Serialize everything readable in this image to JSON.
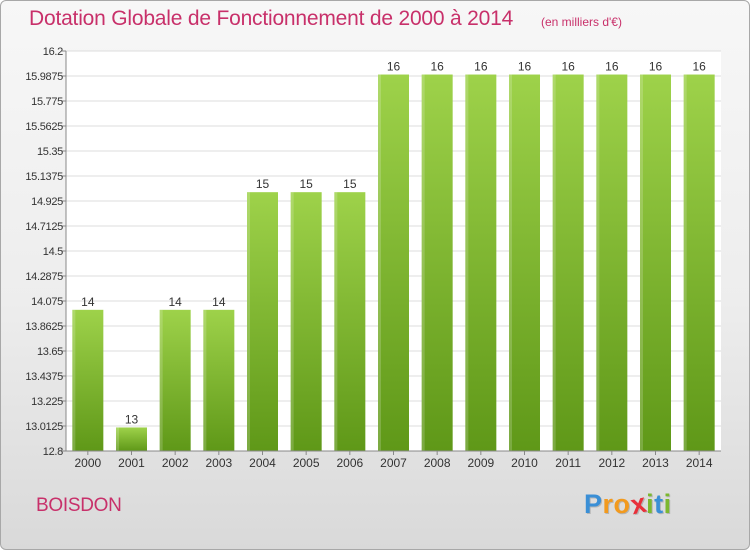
{
  "header": {
    "title": "Dotation Globale de Fonctionnement de 2000 à 2014",
    "unit": "(en milliers d'€)"
  },
  "footer": {
    "commune": "BOISDON",
    "brand": "Proxiti",
    "brand_letters": [
      "P",
      "r",
      "o",
      "x",
      "i",
      "t",
      "i"
    ],
    "brand_colors": [
      "#3a8fd6",
      "#f29a1e",
      "#f29a1e",
      "#e8303a",
      "#7cb82f",
      "#3a8fd6",
      "#7cb82f"
    ]
  },
  "colors": {
    "bar_top": "#9ed24a",
    "bar_bottom": "#5f9818",
    "grid": "#dddddd",
    "text": "#333333",
    "title": "#c8306a"
  },
  "chart_data": {
    "type": "bar",
    "categories": [
      "2000",
      "2001",
      "2002",
      "2003",
      "2004",
      "2005",
      "2006",
      "2007",
      "2008",
      "2009",
      "2010",
      "2011",
      "2012",
      "2013",
      "2014"
    ],
    "values": [
      14,
      13,
      14,
      14,
      15,
      15,
      15,
      16,
      16,
      16,
      16,
      16,
      16,
      16,
      16
    ],
    "data_labels": [
      "14",
      "13",
      "14",
      "14",
      "15",
      "15",
      "15",
      "16",
      "16",
      "16",
      "16",
      "16",
      "16",
      "16",
      "16"
    ],
    "title": "Dotation Globale de Fonctionnement de 2000 à 2014",
    "subtitle": "(en milliers d'€)",
    "ylim": [
      12.8,
      16.2
    ],
    "yticks": [
      12.8,
      13.0125,
      13.225,
      13.4375,
      13.65,
      13.8625,
      14.075,
      14.2875,
      14.5,
      14.7125,
      14.925,
      15.1375,
      15.35,
      15.5625,
      15.775,
      15.9875,
      16.2
    ],
    "ytick_labels": [
      "12.8",
      "13.0125",
      "13.225",
      "13.4375",
      "13.65",
      "13.8625",
      "14.075",
      "14.2875",
      "14.5",
      "14.7125",
      "14.925",
      "15.1375",
      "15.35",
      "15.5625",
      "15.775",
      "15.9875",
      "16.2"
    ],
    "grid": true,
    "legend": "none"
  }
}
